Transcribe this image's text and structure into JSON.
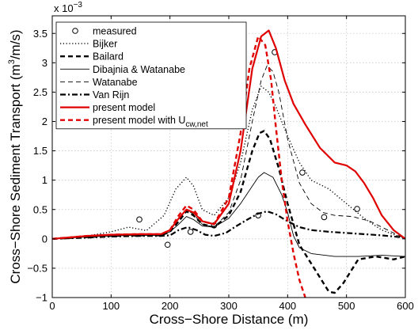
{
  "chart_data": {
    "type": "line",
    "title": "",
    "xlabel": "Cross−Shore Distance (m)",
    "ylabel": "Cross−Shore Sediment Transport (m",
    "ylabel_sup": "3",
    "ylabel_tail": "/m/s)",
    "y_multiplier": "x 10",
    "y_multiplier_exp": "−3",
    "xlim": [
      0,
      600
    ],
    "ylim": [
      -1,
      3.8
    ],
    "grid": true,
    "legend_position": "top-left",
    "xticks": [
      0,
      100,
      200,
      300,
      400,
      500,
      600
    ],
    "xtick_labels": [
      "0",
      "100",
      "200",
      "300",
      "400",
      "500",
      "600"
    ],
    "yticks": [
      -1,
      -0.5,
      0,
      0.5,
      1,
      1.5,
      2,
      2.5,
      3,
      3.5
    ],
    "ytick_labels": [
      "−1",
      "−0.5",
      "0",
      "0.5",
      "1",
      "1.5",
      "2",
      "2.5",
      "3",
      "3.5"
    ],
    "series": [
      {
        "name": "measured",
        "style": "markers",
        "color": "#000000",
        "x": [
          148,
          196,
          235,
          275,
          350,
          378,
          425,
          462,
          518
        ],
        "y": [
          0.33,
          -0.1,
          0.12,
          0.23,
          0.4,
          3.18,
          1.13,
          0.37,
          0.51
        ]
      },
      {
        "name": "Bijker",
        "style": "dotted",
        "color": "#000000",
        "x": [
          0,
          60,
          100,
          130,
          160,
          190,
          210,
          228,
          240,
          255,
          275,
          300,
          320,
          340,
          355,
          368,
          380,
          400,
          420,
          440,
          470,
          500,
          530,
          560,
          600
        ],
        "y": [
          0,
          0.05,
          0.12,
          0.2,
          0.14,
          0.4,
          0.85,
          1.05,
          0.9,
          0.5,
          0.4,
          0.7,
          1.3,
          2.2,
          2.6,
          2.5,
          2.25,
          1.75,
          1.3,
          1.0,
          0.85,
          0.6,
          0.35,
          0.15,
          0
        ]
      },
      {
        "name": "Bailard",
        "style": "dashed-thick",
        "color": "#000000",
        "x": [
          0,
          60,
          100,
          150,
          185,
          200,
          215,
          228,
          240,
          255,
          275,
          300,
          320,
          340,
          352,
          360,
          370,
          385,
          400,
          420,
          445,
          470,
          480,
          495,
          520,
          550,
          580,
          600
        ],
        "y": [
          0,
          0.03,
          0.05,
          0.06,
          0.06,
          0.12,
          0.3,
          0.47,
          0.4,
          0.25,
          0.2,
          0.4,
          0.8,
          1.5,
          1.8,
          1.84,
          1.7,
          1.2,
          0.6,
          -0.1,
          -0.5,
          -0.9,
          -0.92,
          -0.75,
          -0.35,
          -0.3,
          -0.35,
          -0.3
        ]
      },
      {
        "name": "Dibajnia & Watanabe",
        "style": "solid-thin",
        "color": "#000000",
        "x": [
          0,
          60,
          100,
          150,
          185,
          200,
          215,
          228,
          240,
          255,
          275,
          300,
          320,
          340,
          350,
          360,
          375,
          390,
          400,
          410,
          420,
          440,
          480,
          520,
          560,
          600
        ],
        "y": [
          0,
          0.03,
          0.05,
          0.06,
          0.06,
          0.12,
          0.25,
          0.38,
          0.33,
          0.22,
          0.2,
          0.35,
          0.6,
          0.9,
          1.05,
          1.13,
          1.05,
          0.75,
          0.45,
          0.05,
          -0.15,
          -0.25,
          -0.3,
          -0.3,
          -0.28,
          -0.3
        ]
      },
      {
        "name": "Watanabe",
        "style": "dashed-thin",
        "color": "#000000",
        "x": [
          0,
          60,
          100,
          150,
          185,
          200,
          215,
          228,
          240,
          255,
          275,
          300,
          320,
          340,
          355,
          365,
          375,
          385,
          400,
          420,
          440,
          460,
          480,
          510,
          540,
          570,
          600
        ],
        "y": [
          0,
          0.03,
          0.05,
          0.06,
          0.06,
          0.12,
          0.3,
          0.5,
          0.42,
          0.25,
          0.2,
          0.45,
          1.0,
          2.0,
          2.7,
          2.95,
          2.85,
          2.5,
          1.7,
          0.95,
          0.6,
          0.45,
          0.4,
          0.38,
          0.3,
          0.15,
          0
        ]
      },
      {
        "name": "Van Rijn",
        "style": "dashdot",
        "color": "#000000",
        "x": [
          0,
          60,
          100,
          150,
          185,
          200,
          215,
          230,
          245,
          260,
          275,
          295,
          310,
          330,
          350,
          365,
          380,
          400,
          420,
          440,
          470,
          500,
          530,
          560,
          600
        ],
        "y": [
          0,
          0.02,
          0.04,
          0.05,
          0.05,
          0.06,
          0.15,
          0.2,
          0.15,
          0.07,
          0.05,
          0.1,
          0.2,
          0.32,
          0.43,
          0.47,
          0.42,
          0.3,
          0.2,
          0.15,
          0.12,
          0.1,
          0.08,
          0.06,
          0.02
        ]
      },
      {
        "name": "present model",
        "style": "solid-thick",
        "color": "#e00000",
        "x": [
          0,
          60,
          100,
          150,
          185,
          200,
          215,
          228,
          240,
          255,
          275,
          300,
          320,
          340,
          355,
          368,
          380,
          395,
          410,
          430,
          455,
          480,
          500,
          515,
          530,
          545,
          560,
          580,
          600
        ],
        "y": [
          0,
          0.05,
          0.07,
          0.08,
          0.08,
          0.15,
          0.35,
          0.5,
          0.45,
          0.3,
          0.25,
          0.6,
          1.5,
          2.9,
          3.45,
          3.55,
          3.25,
          2.7,
          2.3,
          1.95,
          1.55,
          1.3,
          1.25,
          1.15,
          0.95,
          0.7,
          0.4,
          0.15,
          0
        ]
      },
      {
        "name": "present model with U",
        "name_sub": "cw,net",
        "style": "dashed-thick",
        "color": "#e00000",
        "x": [
          0,
          60,
          100,
          150,
          185,
          200,
          215,
          228,
          240,
          255,
          275,
          300,
          320,
          335,
          350,
          362,
          372,
          380,
          390,
          400,
          410,
          420,
          430
        ],
        "y": [
          0,
          0.05,
          0.07,
          0.08,
          0.08,
          0.15,
          0.4,
          0.57,
          0.5,
          0.3,
          0.25,
          0.7,
          1.8,
          2.9,
          3.45,
          3.3,
          2.7,
          1.9,
          1.0,
          0.3,
          -0.25,
          -0.7,
          -1.0
        ]
      }
    ]
  }
}
